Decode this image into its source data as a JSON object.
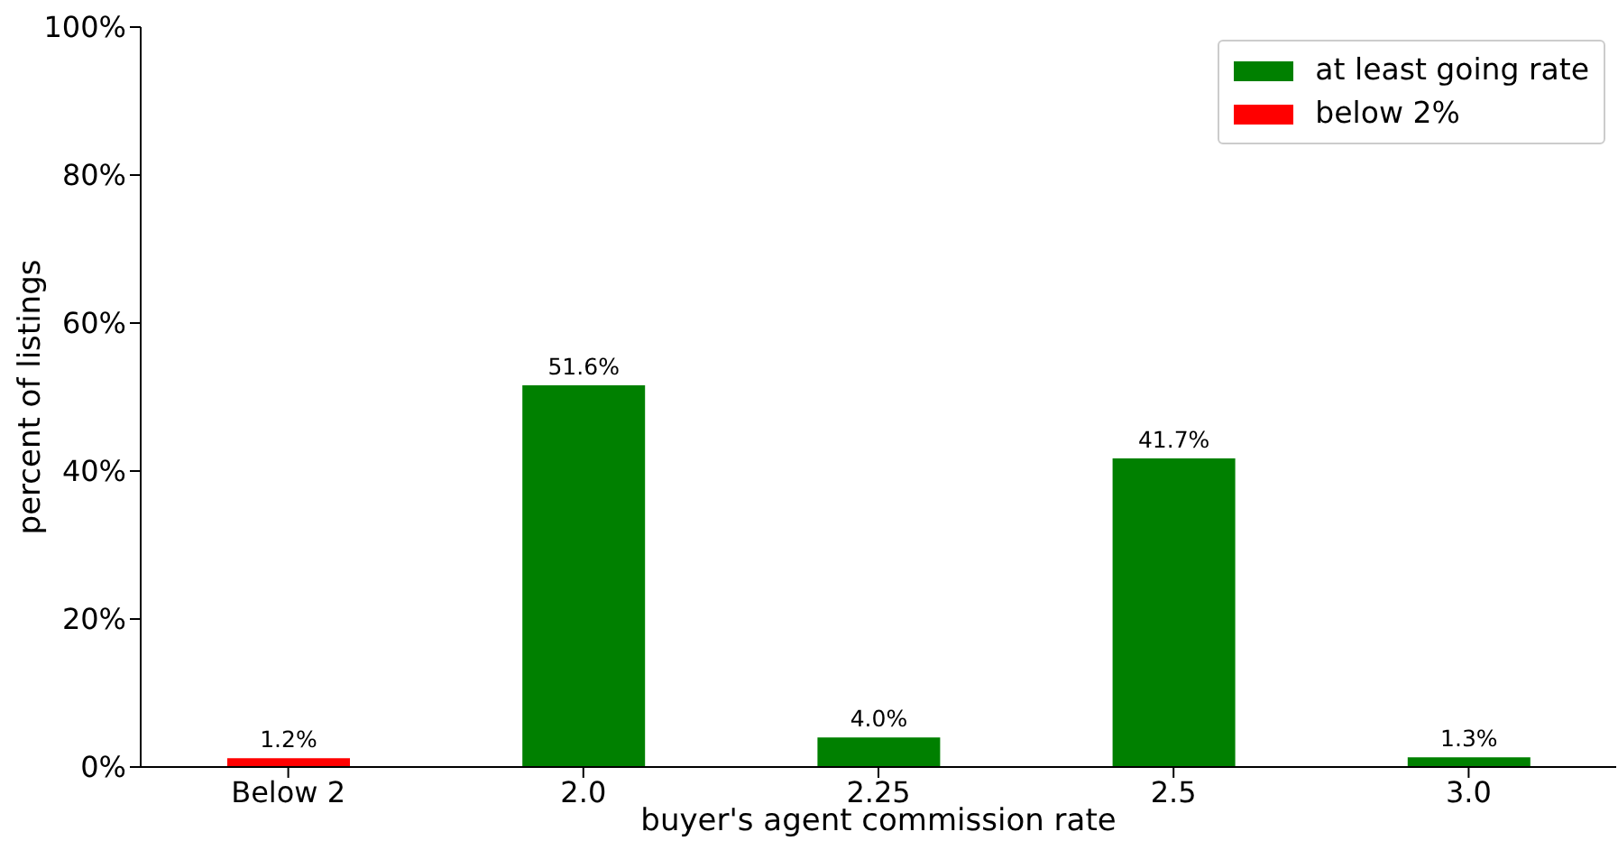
{
  "chart_data": {
    "type": "bar",
    "xlabel": "buyer's agent commission rate",
    "ylabel": "percent of listings",
    "categories": [
      "Below 2",
      "2.0",
      "2.25",
      "2.5",
      "3.0"
    ],
    "series": [
      {
        "name": "at least going rate",
        "color": "#008000",
        "values": [
          null,
          51.6,
          4.0,
          41.7,
          1.3
        ],
        "value_labels": [
          null,
          "51.6%",
          "4.0%",
          "41.7%",
          "1.3%"
        ]
      },
      {
        "name": "below 2%",
        "color": "#ff0000",
        "values": [
          1.2,
          null,
          null,
          null,
          null
        ],
        "value_labels": [
          "1.2%",
          null,
          null,
          null,
          null
        ]
      }
    ],
    "stacked": true,
    "ylim": [
      0,
      100
    ],
    "yticks": [
      {
        "value": 0,
        "label": "0%"
      },
      {
        "value": 20,
        "label": "20%"
      },
      {
        "value": 40,
        "label": "40%"
      },
      {
        "value": 60,
        "label": "60%"
      },
      {
        "value": 80,
        "label": "80%"
      },
      {
        "value": 100,
        "label": "100%"
      }
    ],
    "grid": false,
    "legend": "top right"
  }
}
